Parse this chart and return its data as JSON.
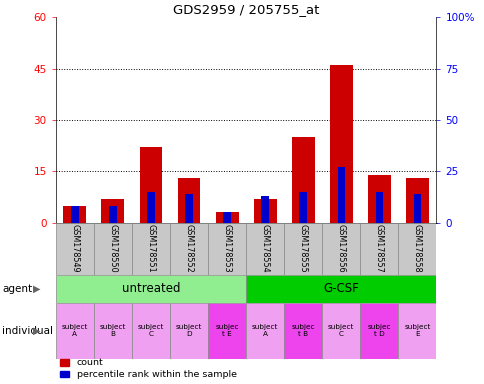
{
  "title": "GDS2959 / 205755_at",
  "samples": [
    "GSM178549",
    "GSM178550",
    "GSM178551",
    "GSM178552",
    "GSM178553",
    "GSM178554",
    "GSM178555",
    "GSM178556",
    "GSM178557",
    "GSM178558"
  ],
  "count_values": [
    5,
    7,
    22,
    13,
    3,
    7,
    25,
    46,
    14,
    13
  ],
  "percentile_values": [
    8,
    8,
    15,
    14,
    5,
    13,
    15,
    27,
    15,
    14
  ],
  "ylim_left": [
    0,
    60
  ],
  "ylim_right": [
    0,
    100
  ],
  "yticks_left": [
    0,
    15,
    30,
    45,
    60
  ],
  "ytick_labels_left": [
    "0",
    "15",
    "30",
    "45",
    "60"
  ],
  "yticks_right": [
    0,
    25,
    50,
    75,
    100
  ],
  "ytick_labels_right": [
    "0",
    "25",
    "50",
    "75",
    "100%"
  ],
  "agent_groups": [
    {
      "label": "untreated",
      "start": 0,
      "end": 5,
      "color": "#90ee90"
    },
    {
      "label": "G-CSF",
      "start": 5,
      "end": 10,
      "color": "#00cc00"
    }
  ],
  "individuals": [
    "subject\nA",
    "subject\nB",
    "subject\nC",
    "subject\nD",
    "subjec\nt E",
    "subject\nA",
    "subjec\nt B",
    "subject\nC",
    "subjec\nt D",
    "subject\nE"
  ],
  "individual_colors": [
    "#f0a0f0",
    "#f0a0f0",
    "#f0a0f0",
    "#f0a0f0",
    "#ee44ee",
    "#f0a0f0",
    "#ee44ee",
    "#f0a0f0",
    "#ee44ee",
    "#f0a0f0"
  ],
  "bar_color_red": "#cc0000",
  "bar_color_blue": "#0000cc",
  "bar_width": 0.6,
  "blue_bar_width": 0.2,
  "sample_bg_color": "#c8c8c8"
}
